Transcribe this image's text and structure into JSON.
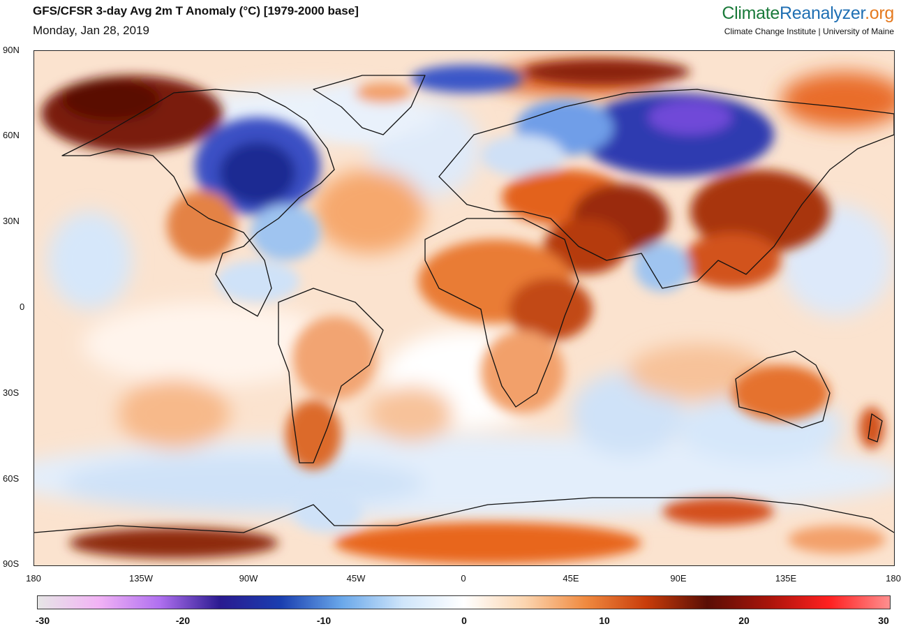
{
  "header": {
    "title": "GFS/CFSR 3-day Avg 2m T Anomaly (°C) [1979-2000 base]",
    "date": "Monday, Jan 28, 2019"
  },
  "logo": {
    "part1": "Climate",
    "part2": "Reanalyzer",
    "part3": ".org",
    "subtitle": "Climate Change Institute | University of Maine",
    "colors": {
      "climate": "#1a7a3a",
      "reanalyzer": "#1f6fb3",
      "org": "#e57a1f"
    }
  },
  "map": {
    "lat_labels": [
      "90N",
      "60N",
      "30N",
      "0",
      "30S",
      "60S",
      "90S"
    ],
    "lon_labels": [
      "180",
      "135W",
      "90W",
      "45W",
      "0",
      "45E",
      "90E",
      "135E",
      "180"
    ]
  },
  "colorbar": {
    "labels": [
      "-30",
      "-20",
      "-10",
      "0",
      "10",
      "20",
      "30"
    ],
    "min": -30,
    "max": 30,
    "colors": [
      "#e6e6e6",
      "#f2b3f5",
      "#b070f0",
      "#2a1a90",
      "#1a3fb0",
      "#6aa8ea",
      "#cfe5fa",
      "#ffffff",
      "#fbd5b0",
      "#f08a40",
      "#c83c0a",
      "#5a0e05",
      "#a8140a",
      "#ff2020",
      "#ff8f8f"
    ]
  }
}
